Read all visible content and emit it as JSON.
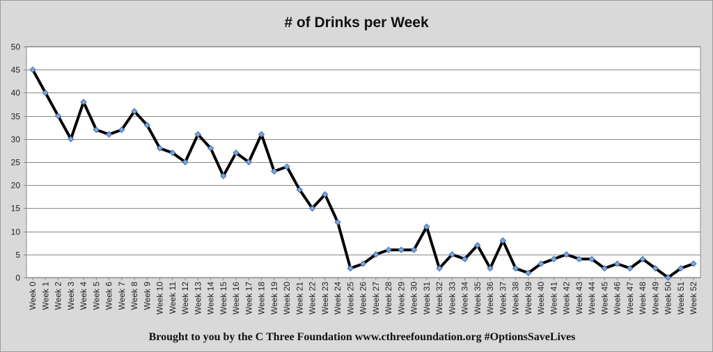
{
  "chart_data": {
    "type": "line",
    "title": "# of Drinks per Week",
    "xlabel": "",
    "ylabel": "",
    "categories": [
      "Week 0",
      "Week 1",
      "Week 2",
      "Week 3",
      "Week 4",
      "Week 5",
      "Week 6",
      "Week 7",
      "Week 8",
      "Week 9",
      "Week 10",
      "Week 11",
      "Week 12",
      "Week 13",
      "Week 14",
      "Week 15",
      "Week 16",
      "Week 17",
      "Week 18",
      "Week 19",
      "Week 20",
      "Week 21",
      "Week 22",
      "Week 23",
      "Week 24",
      "Week 25",
      "Week 26",
      "Week 27",
      "Week 28",
      "Week 29",
      "Week 30",
      "Week 31",
      "Week 32",
      "Week 33",
      "Week 34",
      "Week 35",
      "Week 36",
      "Week 37",
      "Week 38",
      "Week 39",
      "Week 40",
      "Week 41",
      "Week 42",
      "Week 43",
      "Week 44",
      "Week 45",
      "Week 46",
      "Week 47",
      "Week 48",
      "Week 49",
      "Week 50",
      "Week 51",
      "Week 52"
    ],
    "values": [
      45,
      40,
      35,
      30,
      38,
      32,
      31,
      32,
      36,
      33,
      28,
      27,
      25,
      31,
      28,
      22,
      27,
      25,
      31,
      23,
      24,
      19,
      15,
      18,
      12,
      2,
      3,
      5,
      6,
      6,
      6,
      11,
      2,
      5,
      4,
      7,
      2,
      8,
      2,
      1,
      3,
      4,
      5,
      4,
      4,
      2,
      3,
      2,
      4,
      2,
      0,
      2,
      3
    ],
    "ylim": [
      0,
      50
    ],
    "yticks": [
      0,
      5,
      10,
      15,
      20,
      25,
      30,
      35,
      40,
      45,
      50
    ],
    "grid": "horizontal",
    "legend": "none",
    "colors": {
      "line": "#000000",
      "marker": "#7ea6d8",
      "marker_edge": "#3d6aa8",
      "plot_background": "#ffffff",
      "frame_background": "#d9d9d9",
      "gridline": "#888888"
    }
  },
  "footer": "Brought to you by the C Three Foundation www.cthreefoundation.org #OptionsSaveLives"
}
